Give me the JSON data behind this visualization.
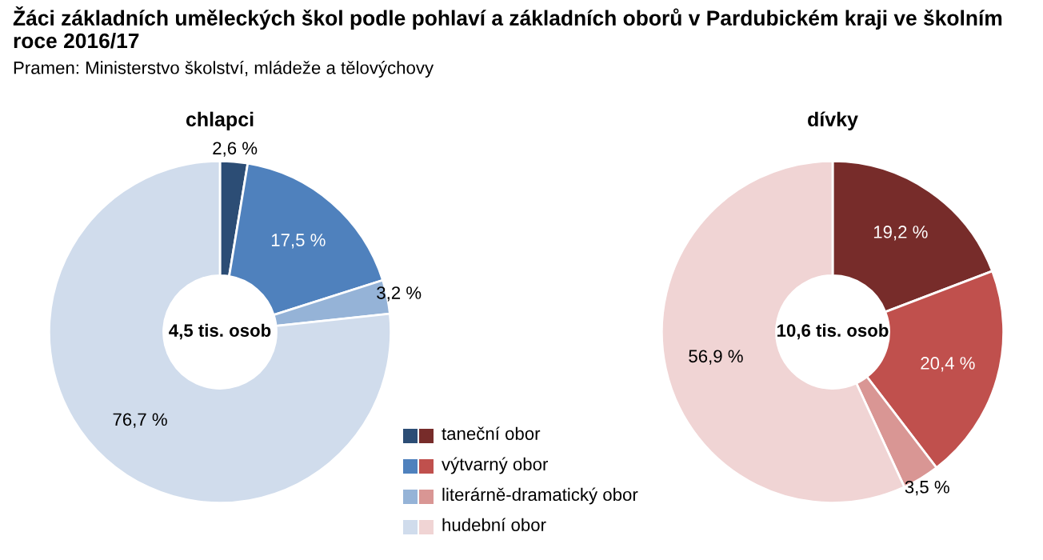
{
  "chart_data": [
    {
      "type": "donut",
      "title": "chlapci",
      "categories": [
        "taneční obor",
        "výtvarný obor",
        "literárně-dramatický obor",
        "hudební obor"
      ],
      "values": [
        2.6,
        17.5,
        3.2,
        76.7
      ],
      "value_labels": [
        "2,6 %",
        "17,5 %",
        "3,2 %",
        "76,7 %"
      ],
      "colors": [
        "#2c4d75",
        "#4f81bd",
        "#95b3d7",
        "#d0dcec"
      ],
      "annotations": [
        "4,5 tis. osob",
        "Žáci základních uměleckých škol podle pohlaví a základních oborů v Pardubickém kraji ve školním roce 2016/17",
        "Pramen: Ministerstvo školství, mládeže a tělovýchovy"
      ],
      "legend": "bottom right"
    },
    {
      "type": "donut",
      "title": "dívky",
      "categories": [
        null,
        null,
        null,
        null
      ],
      "values": [
        19.2,
        20.4,
        3.5,
        56.9
      ],
      "value_labels": [
        "19,2 %",
        "20,4 %",
        "3,5 %",
        "56,9 %"
      ],
      "colors": [
        "#772c2a",
        "#c0504d",
        "#d99694",
        "#f0d4d4"
      ],
      "annotations": [
        "10,6 tis. osob"
      ]
    }
  ]
}
